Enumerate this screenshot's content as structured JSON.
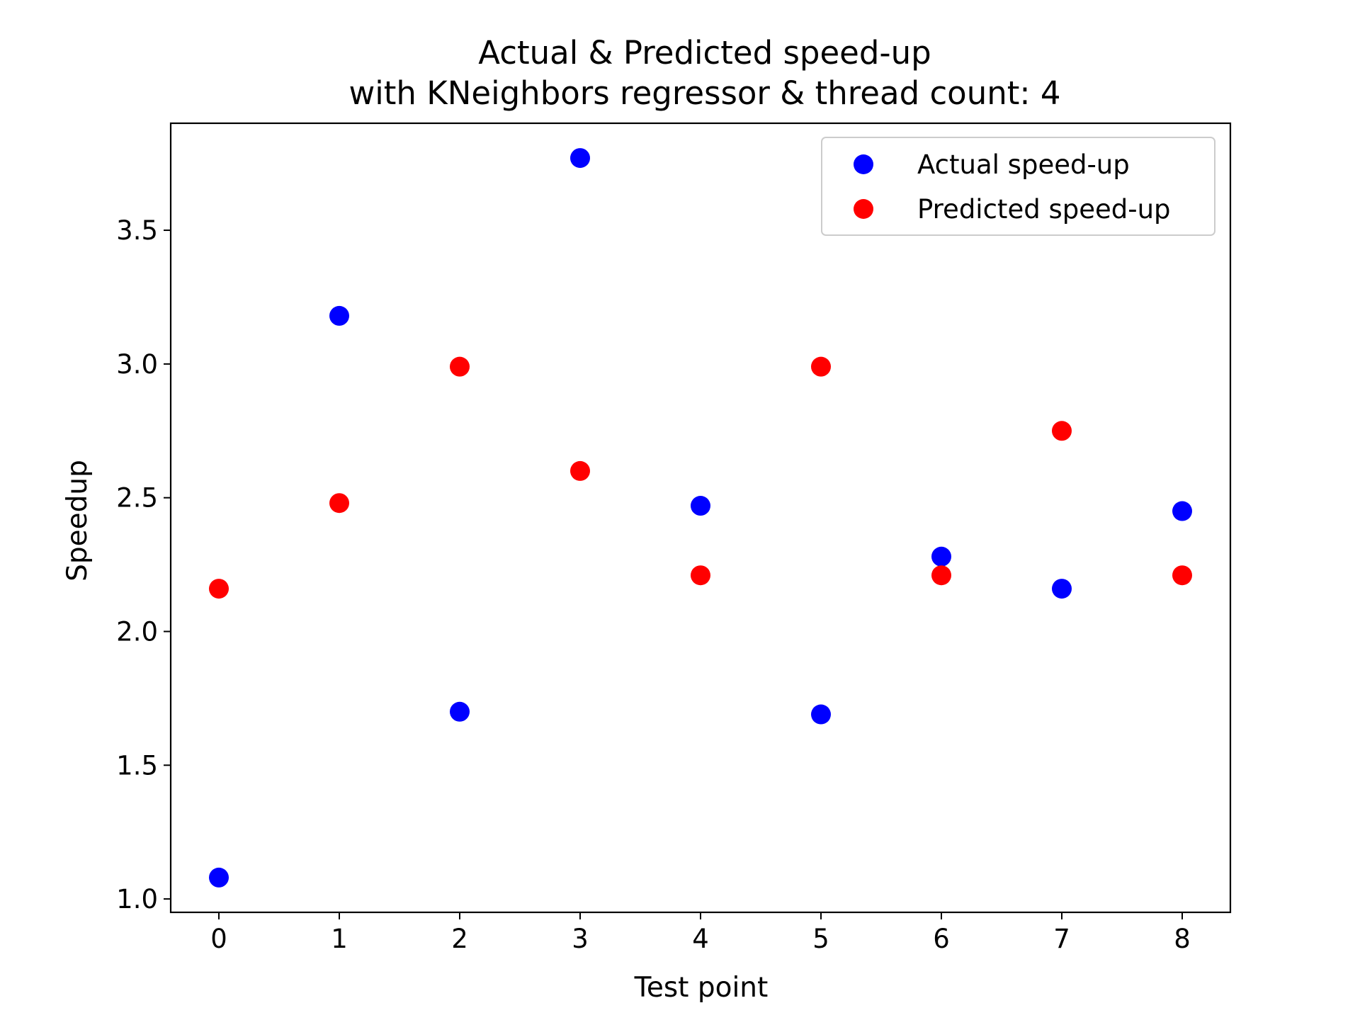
{
  "chart_data": {
    "type": "scatter",
    "title": "Actual & Predicted speed-up",
    "subtitle": "with KNeighbors regressor & thread count: 4",
    "xlabel": "Test point",
    "ylabel": "Speedup",
    "xlim": [
      -0.4,
      8.4
    ],
    "ylim": [
      0.95,
      3.9
    ],
    "x_ticks": [
      "0",
      "1",
      "2",
      "3",
      "4",
      "5",
      "6",
      "7",
      "8"
    ],
    "y_ticks": [
      "1.0",
      "1.5",
      "2.0",
      "2.5",
      "3.0",
      "3.5"
    ],
    "grid": false,
    "legend_position": "top-right",
    "series": [
      {
        "name": "Actual speed-up",
        "color": "#0000ff",
        "x": [
          0,
          1,
          2,
          3,
          4,
          5,
          6,
          7,
          8
        ],
        "y": [
          1.08,
          3.18,
          1.7,
          3.77,
          2.47,
          1.69,
          2.28,
          2.16,
          2.45
        ]
      },
      {
        "name": "Predicted speed-up",
        "color": "#ff0000",
        "x": [
          0,
          1,
          2,
          3,
          4,
          5,
          6,
          7,
          8
        ],
        "y": [
          2.16,
          2.48,
          2.99,
          2.6,
          2.21,
          2.99,
          2.21,
          2.75,
          2.21
        ]
      }
    ]
  }
}
